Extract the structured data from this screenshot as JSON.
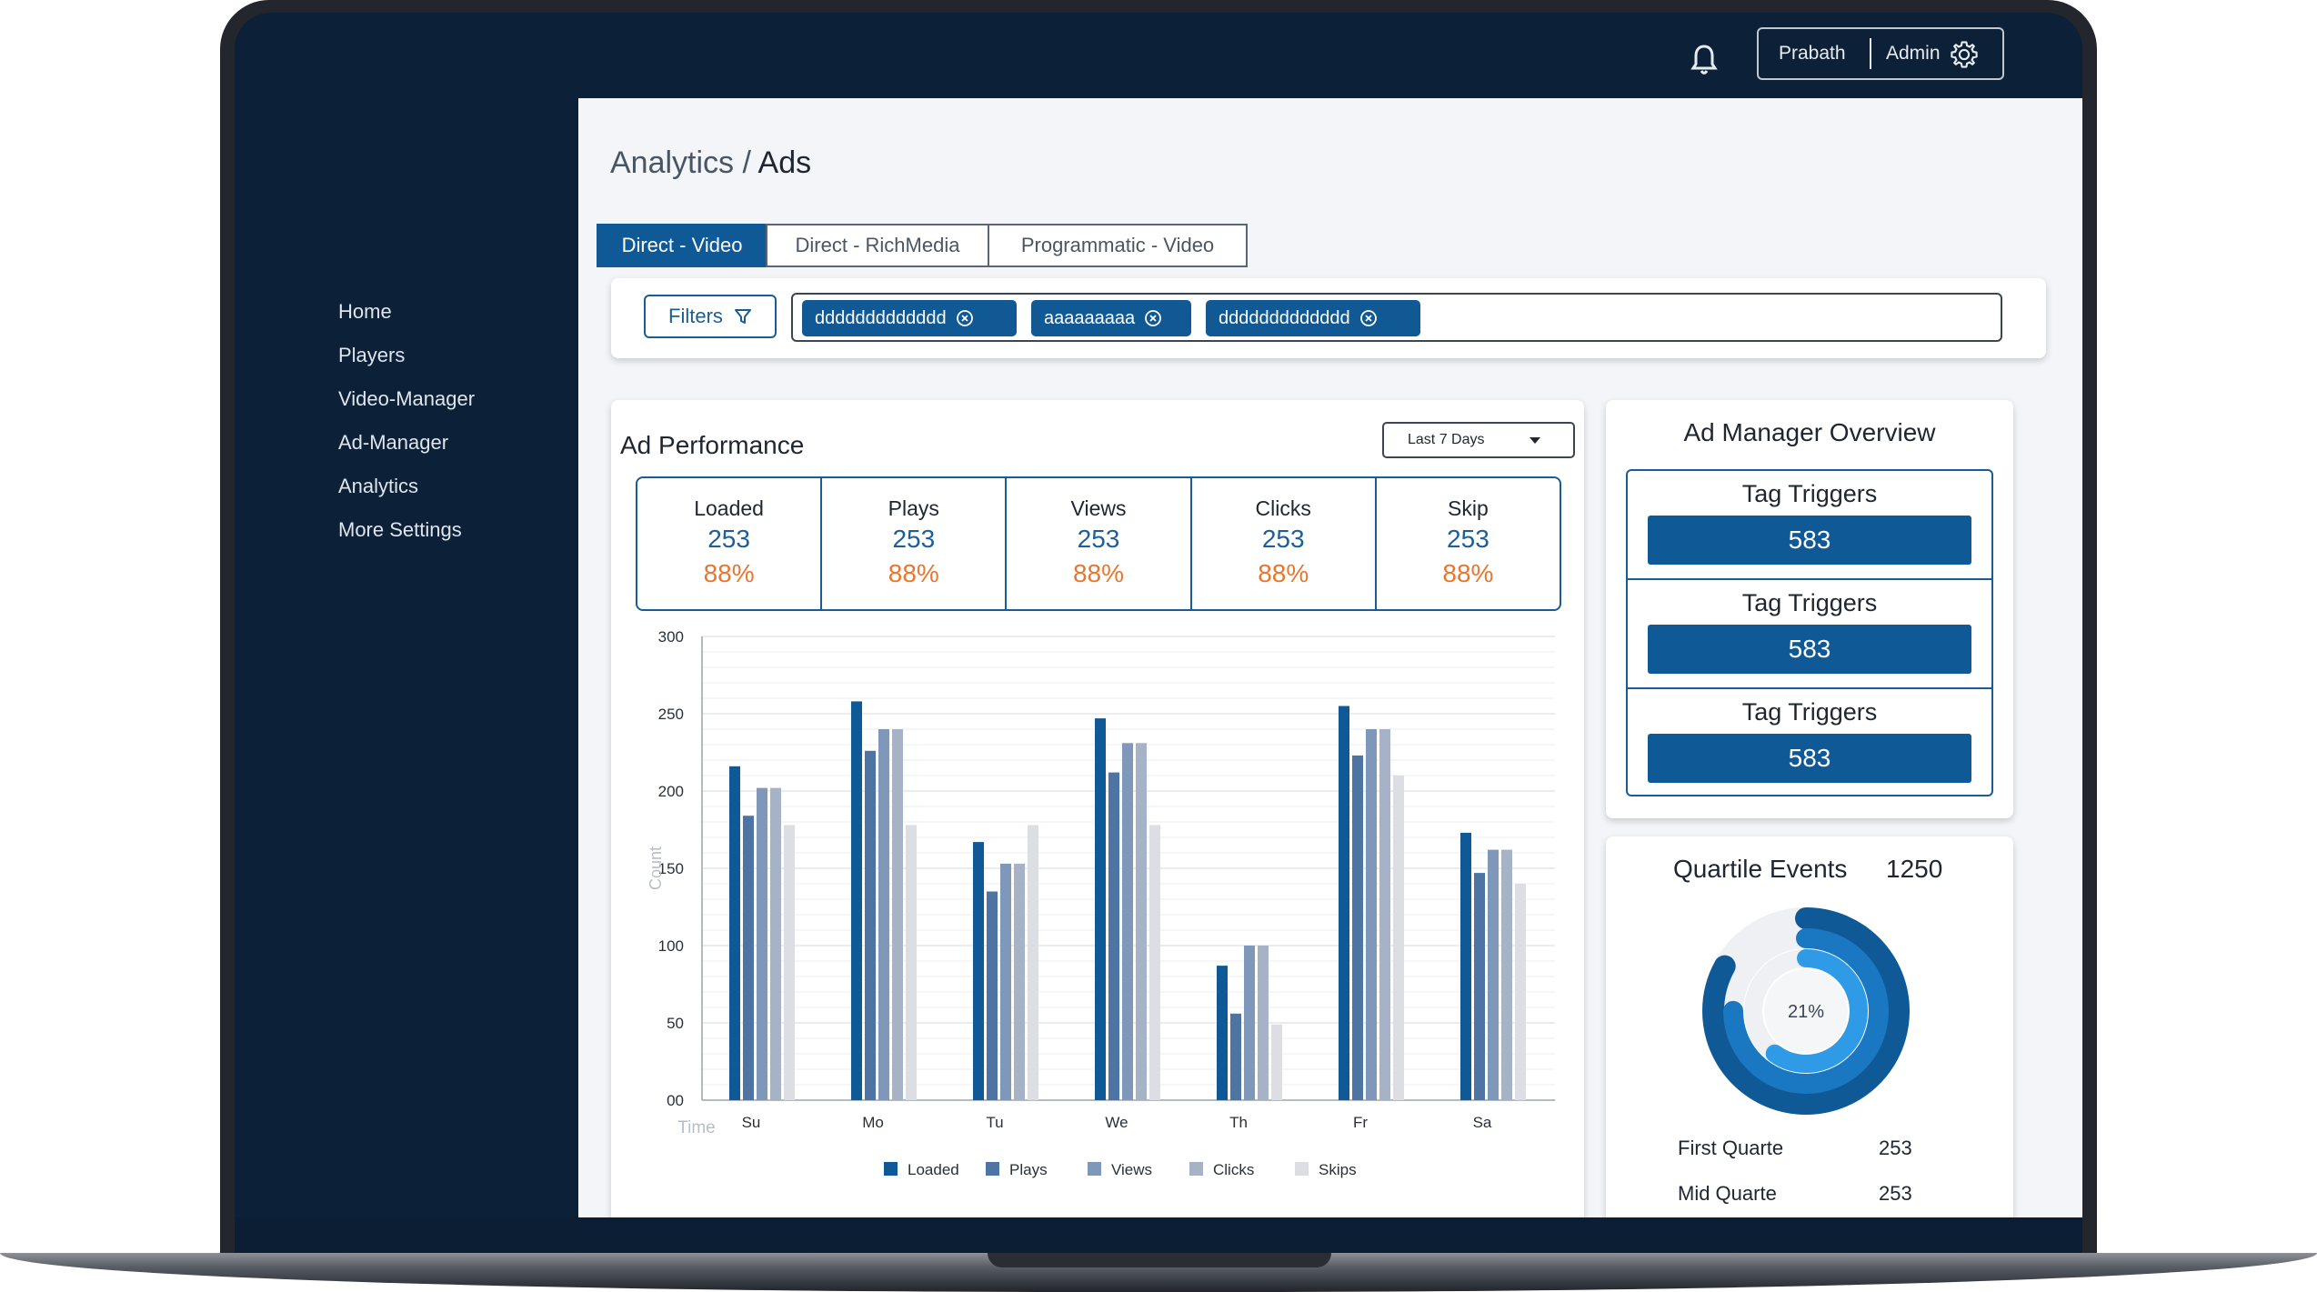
{
  "header": {
    "user_name": "Prabath",
    "role": "Admin"
  },
  "sidebar": {
    "items": [
      {
        "label": "Home"
      },
      {
        "label": "Players"
      },
      {
        "label": "Video-Manager"
      },
      {
        "label": "Ad-Manager"
      },
      {
        "label": "Analytics"
      },
      {
        "label": "More Settings"
      }
    ]
  },
  "breadcrumb": {
    "parent": "Analytics",
    "separator": " / ",
    "current": "Ads"
  },
  "tabs": [
    {
      "label": "Direct - Video",
      "active": true
    },
    {
      "label": "Direct - RichMedia",
      "active": false
    },
    {
      "label": "Programmatic - Video",
      "active": false
    }
  ],
  "filters": {
    "button_label": "Filters",
    "chips": [
      {
        "label": "ddddddddddddd"
      },
      {
        "label": "aaaaaaaaa"
      },
      {
        "label": "ddddddddddddd"
      }
    ]
  },
  "ad_performance": {
    "title": "Ad Performance",
    "range": "Last 7 Days",
    "stats": [
      {
        "label": "Loaded",
        "value": "253",
        "percent": "88%"
      },
      {
        "label": "Plays",
        "value": "253",
        "percent": "88%"
      },
      {
        "label": "Views",
        "value": "253",
        "percent": "88%"
      },
      {
        "label": "Clicks",
        "value": "253",
        "percent": "88%"
      },
      {
        "label": "Skip",
        "value": "253",
        "percent": "88%"
      }
    ]
  },
  "chart_data": {
    "type": "bar",
    "xlabel": "Time",
    "ylabel": "Count",
    "ylim": [
      0,
      300
    ],
    "ytick_labels": [
      "00",
      "50",
      "100",
      "150",
      "200",
      "250",
      "300"
    ],
    "categories": [
      "Su",
      "Mo",
      "Tu",
      "We",
      "Th",
      "Fr",
      "Sa"
    ],
    "series": [
      {
        "name": "Loaded",
        "color": "#0f5a96",
        "values": [
          216,
          258,
          167,
          247,
          87,
          255,
          173
        ]
      },
      {
        "name": "Plays",
        "color": "#4d74a3",
        "values": [
          184,
          226,
          135,
          212,
          56,
          223,
          147
        ]
      },
      {
        "name": "Views",
        "color": "#7f97b9",
        "values": [
          202,
          240,
          153,
          231,
          100,
          240,
          162
        ]
      },
      {
        "name": "Clicks",
        "color": "#a6b3c6",
        "values": [
          202,
          240,
          153,
          231,
          100,
          240,
          162
        ]
      },
      {
        "name": "Skips",
        "color": "#dcdee3",
        "values": [
          178,
          178,
          178,
          178,
          49,
          210,
          140
        ]
      }
    ],
    "legend_position": "bottom",
    "grid": true
  },
  "ad_manager": {
    "title": "Ad Manager Overview",
    "rows": [
      {
        "label": "Tag Triggers",
        "value": "583"
      },
      {
        "label": "Tag Triggers",
        "value": "583"
      },
      {
        "label": "Tag Triggers",
        "value": "583"
      }
    ]
  },
  "quartile": {
    "title": "Quartile Events",
    "total": "1250",
    "center_percent": "21%",
    "rings": [
      {
        "fraction": 0.83,
        "color": "#0f5a96"
      },
      {
        "fraction": 0.75,
        "color": "#1a78c2"
      },
      {
        "fraction": 0.6,
        "color": "#2f9ae6"
      }
    ],
    "items": [
      {
        "label": "First Quarte",
        "value": "253"
      },
      {
        "label": "Mid Quarte",
        "value": "253"
      }
    ]
  }
}
